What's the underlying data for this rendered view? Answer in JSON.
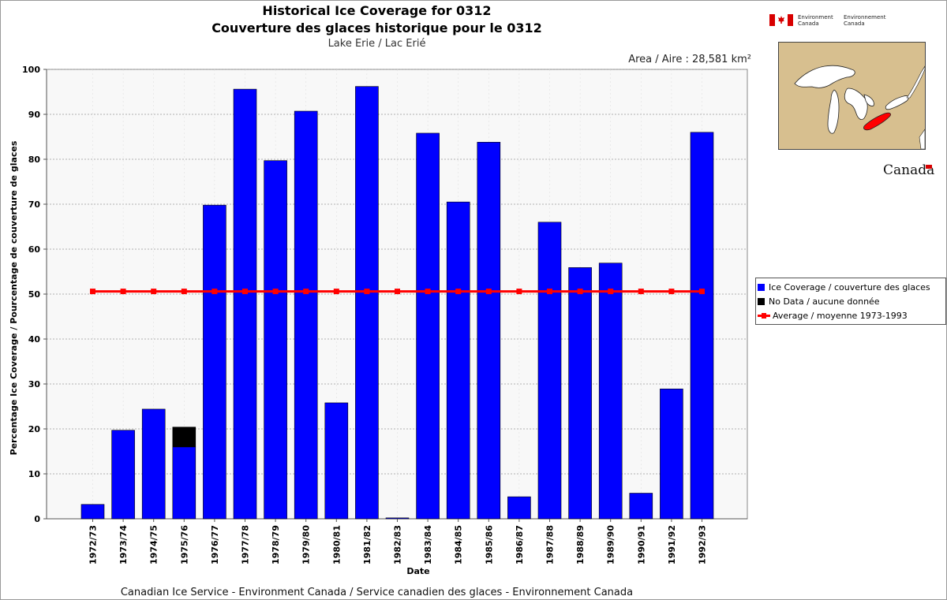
{
  "header": {
    "title_en": "Historical Ice Coverage for 0312",
    "title_fr": "Couverture des glaces historique pour le 0312",
    "subtitle": "Lake Erie / Lac Erié",
    "area": "Area / Aire : 28,581 km²"
  },
  "footer": "Canadian Ice Service - Environment Canada / Service canadien des glaces - Environnement Canada",
  "branding": {
    "department_en_1": "Environment",
    "department_en_2": "Canada",
    "department_fr_1": "Environnement",
    "department_fr_2": "Canada",
    "wordmark": "Canada"
  },
  "legend": {
    "coverage": "Ice Coverage / couverture des glaces",
    "nodata": "No Data / aucune donnée",
    "average": "Average / moyenne 1973-1993"
  },
  "colors": {
    "coverage": "#0000ff",
    "nodata": "#000000",
    "average": "#ff0000",
    "map_land": "#d7bf8f",
    "map_highlight": "#ff0000"
  },
  "chart_data": {
    "type": "bar",
    "stacked": true,
    "xlabel": "Date",
    "ylabel": "Percentage Ice Coverage / Pourcentage de couverture de glaces",
    "ylim": [
      0,
      100
    ],
    "yticks": [
      0,
      10,
      20,
      30,
      40,
      50,
      60,
      70,
      80,
      90,
      100
    ],
    "grid": true,
    "legend_position": "right",
    "categories": [
      "1972/73",
      "1973/74",
      "1974/75",
      "1975/76",
      "1976/77",
      "1977/78",
      "1978/79",
      "1979/80",
      "1980/81",
      "1981/82",
      "1982/83",
      "1983/84",
      "1984/85",
      "1985/86",
      "1986/87",
      "1987/88",
      "1988/89",
      "1989/90",
      "1990/91",
      "1991/92",
      "1992/93"
    ],
    "series": [
      {
        "name": "Ice Coverage / couverture des glaces",
        "type": "bar",
        "values": [
          3.2,
          19.7,
          24.4,
          16.0,
          69.8,
          95.6,
          79.7,
          90.7,
          25.8,
          96.2,
          0.2,
          85.8,
          70.5,
          83.8,
          4.9,
          66.0,
          55.9,
          56.9,
          5.7,
          28.9,
          86.0
        ]
      },
      {
        "name": "No Data / aucune donnée",
        "type": "bar",
        "values": [
          0,
          0,
          0,
          4.4,
          0,
          0,
          0,
          0,
          0,
          0,
          0,
          0,
          0,
          0,
          0,
          0,
          0,
          0,
          0,
          0,
          0
        ]
      },
      {
        "name": "Average / moyenne 1973-1993",
        "type": "line",
        "values": [
          50.6,
          50.6,
          50.6,
          50.6,
          50.6,
          50.6,
          50.6,
          50.6,
          50.6,
          50.6,
          50.6,
          50.6,
          50.6,
          50.6,
          50.6,
          50.6,
          50.6,
          50.6,
          50.6,
          50.6,
          50.6
        ]
      }
    ]
  }
}
